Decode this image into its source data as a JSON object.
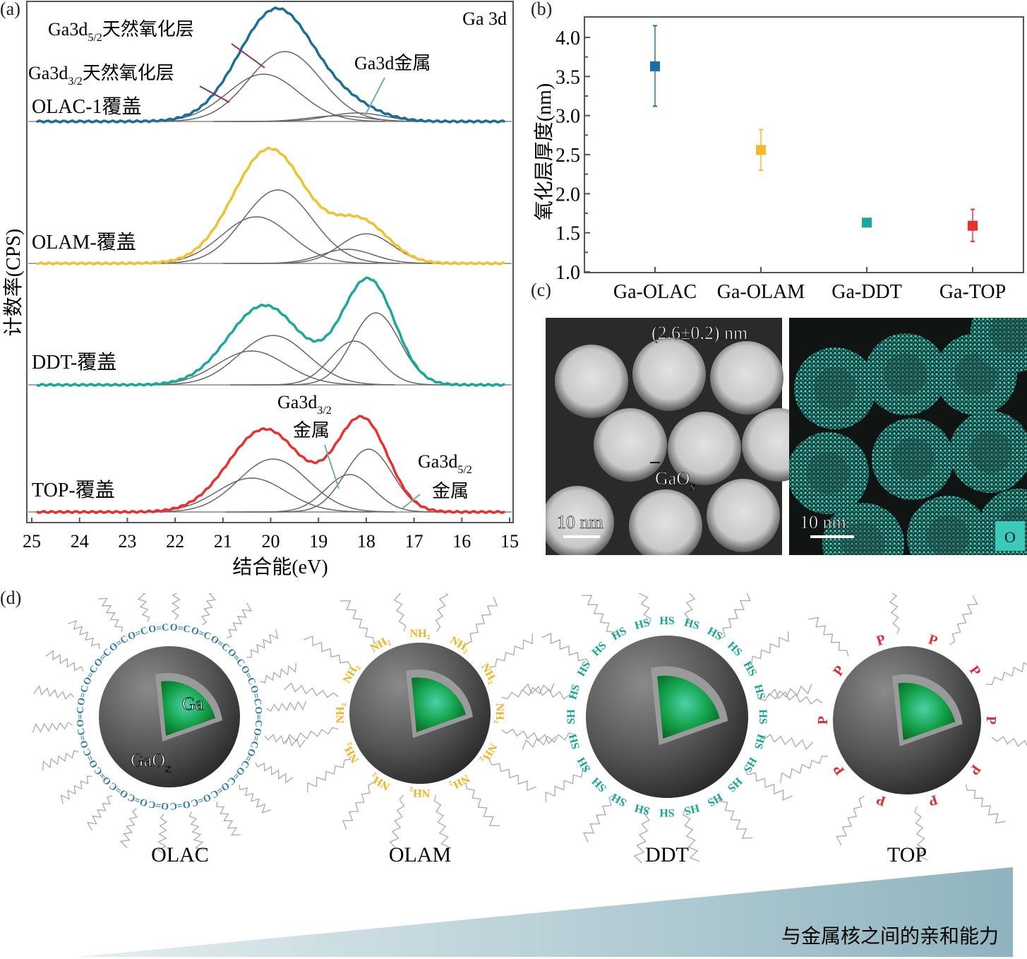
{
  "panel_labels": {
    "a": "(a)",
    "b": "(b)",
    "c": "(c)",
    "d": "(d)"
  },
  "chart_data": [
    {
      "type": "line",
      "panel": "a",
      "title": "Ga 3d",
      "xlabel": "结合能(eV)",
      "ylabel": "计数率(CPS)",
      "xlim": [
        25,
        15
      ],
      "xticks": [
        "25",
        "24",
        "23",
        "22",
        "21",
        "20",
        "19",
        "18",
        "17",
        "16",
        "15"
      ],
      "ylim": [
        0,
        7.4
      ],
      "y_units": "a.u. (stacked, offset)",
      "annotations": {
        "oxide_52_main": "Ga3d",
        "oxide_52_sub": "5/2",
        "oxide_52_tail": "天然氧化层",
        "oxide_32_main": "Ga3d",
        "oxide_32_sub": "3/2",
        "oxide_32_tail": "天然氧化层",
        "metal": "Ga3d金属",
        "metal_32_main": "Ga3d",
        "metal_32_sub": "3/2",
        "metal_32_tail": "金属",
        "metal_52_main": "Ga3d",
        "metal_52_sub": "5/2",
        "metal_52_tail": "金属"
      },
      "series": [
        {
          "name": "OLAC-1覆盖",
          "color": "#1a6e9a",
          "offset": 5.68,
          "components": [
            {
              "center": 19.7,
              "amp": 0.99,
              "sigma": 0.75
            },
            {
              "center": 20.15,
              "amp": 0.67,
              "sigma": 0.75
            },
            {
              "center": 18.2,
              "amp": 0.12,
              "sigma": 0.6
            },
            {
              "center": 18.6,
              "amp": 0.08,
              "sigma": 0.6
            }
          ]
        },
        {
          "name": "OLAM-覆盖",
          "color": "#f2c12e",
          "offset": 3.67,
          "components": [
            {
              "center": 19.85,
              "amp": 1.04,
              "sigma": 0.72
            },
            {
              "center": 20.3,
              "amp": 0.66,
              "sigma": 0.72
            },
            {
              "center": 18.0,
              "amp": 0.42,
              "sigma": 0.55
            },
            {
              "center": 18.4,
              "amp": 0.2,
              "sigma": 0.55
            }
          ]
        },
        {
          "name": "DDT-覆盖",
          "color": "#1aa89c",
          "offset": 1.95,
          "components": [
            {
              "center": 19.95,
              "amp": 0.7,
              "sigma": 0.72
            },
            {
              "center": 20.4,
              "amp": 0.48,
              "sigma": 0.72
            },
            {
              "center": 17.8,
              "amp": 1.02,
              "sigma": 0.5
            },
            {
              "center": 18.25,
              "amp": 0.62,
              "sigma": 0.5
            }
          ]
        },
        {
          "name": "TOP-覆盖",
          "color": "#e8312f",
          "offset": 0.15,
          "components": [
            {
              "center": 19.95,
              "amp": 0.75,
              "sigma": 0.72
            },
            {
              "center": 20.4,
              "amp": 0.48,
              "sigma": 0.72
            },
            {
              "center": 17.95,
              "amp": 0.89,
              "sigma": 0.5
            },
            {
              "center": 18.35,
              "amp": 0.53,
              "sigma": 0.5
            }
          ]
        }
      ]
    },
    {
      "type": "scatter",
      "panel": "b",
      "ylabel": "氧化层厚度(nm)",
      "xlabel": "",
      "ylim": [
        1.0,
        4.2
      ],
      "yticks": [
        "1.0",
        "1.5",
        "2.0",
        "2.5",
        "3.0",
        "3.5",
        "4.0"
      ],
      "categories": [
        "Ga-OLAC",
        "Ga-OLAM",
        "Ga-DDT",
        "Ga-TOP"
      ],
      "values": [
        3.63,
        2.56,
        1.63,
        1.59
      ],
      "error_low": [
        3.12,
        2.3,
        1.63,
        1.39
      ],
      "error_high": [
        4.15,
        2.82,
        1.63,
        1.8
      ],
      "colors": [
        "#1a6ea8",
        "#f5b82a",
        "#1aa89c",
        "#e8312f"
      ]
    }
  ],
  "panel_c": {
    "left_caption": "(2.6±0.2) nm",
    "gaox_main": "GaO",
    "gaox_sub": "x",
    "scale_left": "10 nm",
    "scale_right": "10 nm",
    "element_badge": "O"
  },
  "panel_d": {
    "core_label": "Ga",
    "shell_main": "GaO",
    "shell_sub": "x",
    "particles": [
      {
        "name": "OLAC",
        "ligand": "O=C",
        "color": "#2a7aa8"
      },
      {
        "name": "OLAM",
        "ligand": "NH₂",
        "color": "#f0b21e"
      },
      {
        "name": "DDT",
        "ligand": "HS",
        "color": "#12a596"
      },
      {
        "name": "TOP",
        "ligand": "P",
        "color": "#e02c33"
      }
    ],
    "affinity_label": "与金属核之间的亲和能力"
  }
}
